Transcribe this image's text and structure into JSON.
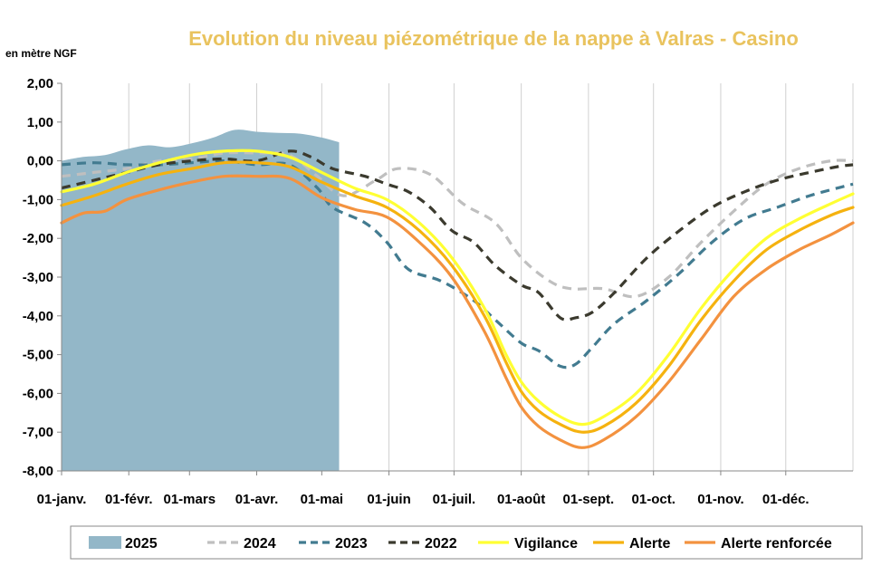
{
  "chart_data": {
    "type": "line",
    "title": "Evolution du niveau piézométrique de la nappe à Valras - Casino",
    "unit_label": "en mètre NGF",
    "xlabel": "",
    "ylabel": "en mètre NGF",
    "ylim": [
      -8,
      2
    ],
    "y_ticks": [
      "2,00",
      "1,00",
      "0,00",
      "-1,00",
      "-2,00",
      "-3,00",
      "-4,00",
      "-5,00",
      "-6,00",
      "-7,00",
      "-8,00"
    ],
    "xlim": [
      0,
      365
    ],
    "x_ticks": [
      {
        "day": 0,
        "label": "01-janv."
      },
      {
        "day": 31,
        "label": "01-févr."
      },
      {
        "day": 59,
        "label": "01-mars"
      },
      {
        "day": 90,
        "label": "01-avr."
      },
      {
        "day": 120,
        "label": "01-mai"
      },
      {
        "day": 151,
        "label": "01-juin"
      },
      {
        "day": 181,
        "label": "01-juil."
      },
      {
        "day": 212,
        "label": "01-août"
      },
      {
        "day": 243,
        "label": "01-sept."
      },
      {
        "day": 273,
        "label": "01-oct."
      },
      {
        "day": 304,
        "label": "01-nov."
      },
      {
        "day": 334,
        "label": "01-déc."
      }
    ],
    "grid": "vertical",
    "legend_position": "bottom",
    "series": [
      {
        "name": "2025",
        "kind": "area",
        "color": "#93b7c8",
        "x": [
          0,
          10,
          20,
          30,
          40,
          50,
          60,
          70,
          80,
          90,
          100,
          110,
          120,
          128
        ],
        "values": [
          0.0,
          0.1,
          0.15,
          0.3,
          0.4,
          0.35,
          0.45,
          0.6,
          0.8,
          0.75,
          0.72,
          0.7,
          0.6,
          0.48
        ]
      },
      {
        "name": "2024",
        "kind": "dashed",
        "color": "#bfbfbf",
        "x": [
          0,
          15,
          30,
          45,
          60,
          75,
          90,
          105,
          118,
          130,
          145,
          155,
          170,
          185,
          200,
          212,
          225,
          235,
          250,
          265,
          280,
          295,
          310,
          325,
          340,
          355,
          365
        ],
        "values": [
          -0.4,
          -0.3,
          -0.2,
          0.0,
          0.05,
          0.2,
          0.2,
          0.15,
          -0.4,
          -0.9,
          -0.5,
          -0.2,
          -0.35,
          -1.1,
          -1.6,
          -2.5,
          -3.1,
          -3.3,
          -3.3,
          -3.5,
          -3.0,
          -2.1,
          -1.3,
          -0.6,
          -0.2,
          0.0,
          0.0
        ]
      },
      {
        "name": "2023",
        "kind": "dashed",
        "color": "#427b90",
        "x": [
          0,
          15,
          30,
          45,
          60,
          75,
          90,
          105,
          118,
          125,
          140,
          150,
          160,
          175,
          190,
          200,
          212,
          220,
          230,
          237,
          245,
          255,
          270,
          285,
          300,
          315,
          330,
          345,
          358,
          365
        ],
        "values": [
          -0.1,
          -0.05,
          -0.1,
          -0.1,
          -0.05,
          0.0,
          -0.1,
          -0.1,
          -0.7,
          -1.2,
          -1.6,
          -2.1,
          -2.8,
          -3.1,
          -3.6,
          -4.1,
          -4.7,
          -4.9,
          -5.3,
          -5.25,
          -4.8,
          -4.2,
          -3.6,
          -2.9,
          -2.1,
          -1.5,
          -1.2,
          -0.9,
          -0.7,
          -0.6
        ]
      },
      {
        "name": "2022",
        "kind": "dashed",
        "color": "#3b3a2e",
        "x": [
          0,
          15,
          30,
          45,
          60,
          75,
          90,
          105,
          115,
          125,
          140,
          150,
          160,
          170,
          180,
          190,
          200,
          212,
          220,
          230,
          237,
          245,
          255,
          270,
          285,
          300,
          315,
          330,
          345,
          358,
          365
        ],
        "values": [
          -0.7,
          -0.5,
          -0.3,
          -0.1,
          0.0,
          0.05,
          0.0,
          0.25,
          0.1,
          -0.2,
          -0.4,
          -0.6,
          -0.8,
          -1.2,
          -1.8,
          -2.1,
          -2.7,
          -3.2,
          -3.4,
          -4.05,
          -4.05,
          -3.9,
          -3.4,
          -2.5,
          -1.8,
          -1.2,
          -0.8,
          -0.5,
          -0.3,
          -0.15,
          -0.1
        ]
      },
      {
        "name": "Vigilance",
        "kind": "solid",
        "color": "#ffff33",
        "x": [
          0,
          15,
          30,
          45,
          60,
          75,
          90,
          105,
          120,
          135,
          150,
          165,
          180,
          195,
          205,
          212,
          220,
          230,
          240,
          250,
          265,
          280,
          295,
          310,
          325,
          340,
          355,
          365
        ],
        "values": [
          -0.8,
          -0.6,
          -0.3,
          -0.05,
          0.15,
          0.25,
          0.25,
          0.1,
          -0.3,
          -0.7,
          -1.0,
          -1.6,
          -2.5,
          -3.8,
          -5.0,
          -5.7,
          -6.2,
          -6.6,
          -6.8,
          -6.6,
          -6.0,
          -5.0,
          -3.8,
          -2.8,
          -2.0,
          -1.5,
          -1.1,
          -0.85
        ]
      },
      {
        "name": "Alerte",
        "kind": "solid",
        "color": "#f5b20f",
        "x": [
          0,
          15,
          30,
          45,
          60,
          75,
          90,
          105,
          120,
          135,
          150,
          165,
          180,
          195,
          205,
          212,
          220,
          230,
          240,
          250,
          265,
          280,
          295,
          310,
          325,
          340,
          355,
          365
        ],
        "values": [
          -1.15,
          -0.9,
          -0.6,
          -0.35,
          -0.2,
          -0.05,
          -0.05,
          -0.15,
          -0.55,
          -0.9,
          -1.2,
          -1.8,
          -2.7,
          -4.0,
          -5.2,
          -5.95,
          -6.45,
          -6.8,
          -7.0,
          -6.85,
          -6.25,
          -5.3,
          -4.1,
          -3.1,
          -2.3,
          -1.8,
          -1.4,
          -1.2
        ]
      },
      {
        "name": "Alerte renforcée",
        "kind": "solid",
        "color": "#f3923f",
        "x": [
          0,
          10,
          20,
          30,
          45,
          60,
          75,
          90,
          105,
          120,
          135,
          150,
          165,
          180,
          195,
          205,
          212,
          220,
          230,
          240,
          250,
          265,
          280,
          295,
          310,
          325,
          340,
          355,
          365
        ],
        "values": [
          -1.6,
          -1.35,
          -1.3,
          -1.0,
          -0.75,
          -0.55,
          -0.4,
          -0.4,
          -0.45,
          -0.95,
          -1.25,
          -1.45,
          -2.1,
          -3.0,
          -4.4,
          -5.6,
          -6.35,
          -6.85,
          -7.2,
          -7.4,
          -7.2,
          -6.6,
          -5.7,
          -4.6,
          -3.5,
          -2.8,
          -2.3,
          -1.9,
          -1.6
        ]
      }
    ]
  }
}
